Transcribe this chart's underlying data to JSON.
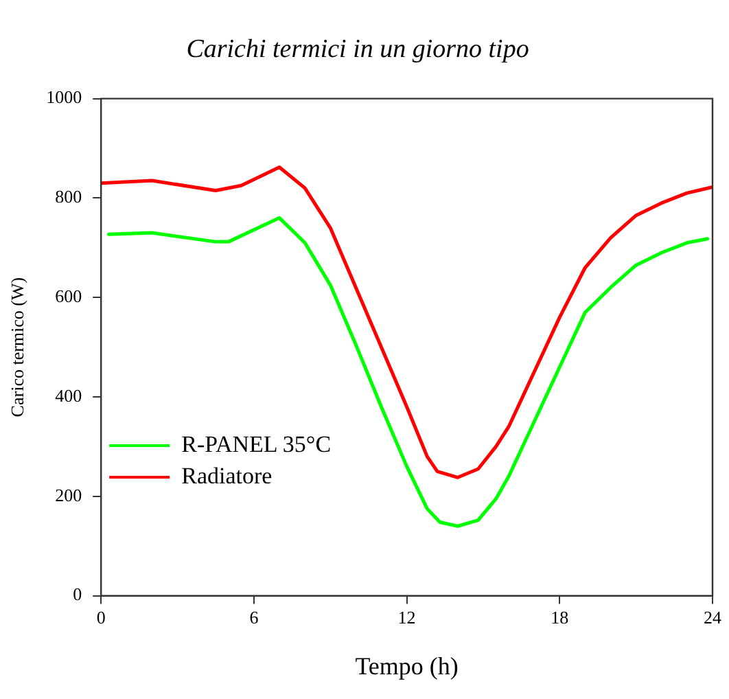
{
  "chart_data": {
    "type": "line",
    "title": "Carichi termici in un giorno tipo",
    "xlabel": "Tempo (h)",
    "ylabel": "Carico termico (W)",
    "xlim": [
      0,
      24
    ],
    "xticks": [
      0,
      6,
      12,
      18,
      24
    ],
    "ylim": [
      0,
      1000
    ],
    "yticks": [
      0,
      200,
      400,
      600,
      800,
      1000
    ],
    "grid": false,
    "legend": "bottom left",
    "marker": "none",
    "line_style": "solid",
    "series": [
      {
        "name": "R-PANEL 35°C",
        "color": "#00ff00",
        "x": [
          0.3,
          2,
          4.5,
          5,
          7,
          8,
          9,
          10,
          11,
          12,
          12.8,
          13.3,
          14,
          14.8,
          15.5,
          16,
          17,
          18,
          19,
          20,
          21,
          22,
          23,
          23.8
        ],
        "values": [
          727,
          730,
          712,
          712,
          760,
          710,
          625,
          505,
          380,
          260,
          175,
          148,
          140,
          152,
          195,
          240,
          350,
          460,
          570,
          620,
          665,
          690,
          710,
          718
        ]
      },
      {
        "name": "Radiatore",
        "color": "#ff0000",
        "x": [
          0,
          2,
          4.5,
          5.5,
          7,
          8,
          9,
          10,
          11,
          12,
          12.8,
          13.2,
          14,
          14.8,
          15.5,
          16,
          17,
          18,
          19,
          20,
          21,
          22,
          23,
          24
        ],
        "values": [
          830,
          835,
          815,
          825,
          862,
          820,
          740,
          620,
          500,
          380,
          280,
          250,
          238,
          255,
          300,
          340,
          450,
          560,
          660,
          720,
          765,
          790,
          810,
          822
        ]
      }
    ]
  }
}
